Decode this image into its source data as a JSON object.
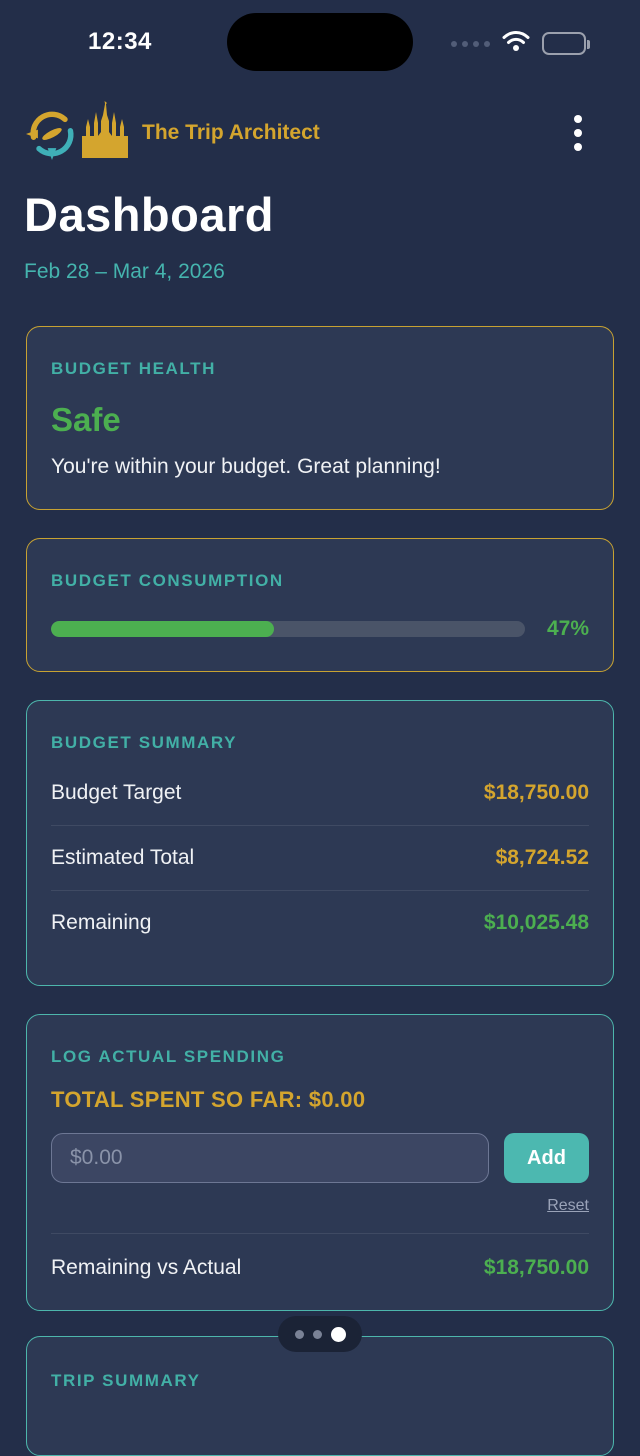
{
  "status_bar": {
    "time": "12:34"
  },
  "header": {
    "app_name": "The Trip Architect",
    "page_title": "Dashboard",
    "date_range": "Feb 28 – Mar 4, 2026"
  },
  "budget_health": {
    "section_title": "Budget Health",
    "status": "Safe",
    "message": "You're within your budget. Great planning!"
  },
  "budget_consumption": {
    "section_title": "Budget Consumption",
    "percent": 47,
    "percent_label": "47%"
  },
  "budget_summary": {
    "section_title": "Budget Summary",
    "rows": [
      {
        "label": "Budget Target",
        "value": "$18,750.00"
      },
      {
        "label": "Estimated Total",
        "value": "$8,724.52"
      },
      {
        "label": "Remaining",
        "value": "$10,025.48"
      }
    ]
  },
  "log_spending": {
    "section_title": "Log Actual Spending",
    "total_spent_label": "TOTAL SPENT SO FAR: $0.00",
    "input_value": "",
    "input_placeholder": "$0.00",
    "add_button": "Add",
    "reset_link": "Reset",
    "remaining_label": "Remaining vs Actual",
    "remaining_value": "$18,750.00"
  },
  "page_indicator": {
    "dot_count": 3,
    "active_index": 2
  },
  "trip_summary": {
    "section_title": "Trip Summary"
  },
  "colors": {
    "page_background": "#232e49",
    "card_background": "#2d3954",
    "gold_accent": "#d4a52e",
    "gold_border": "#c7a232",
    "teal_accent": "#42b0a6",
    "teal_border": "#4db6ac",
    "green_status": "#4caf50",
    "add_button_background": "#4cb8b0",
    "muted_text": "#9aa3b8"
  }
}
